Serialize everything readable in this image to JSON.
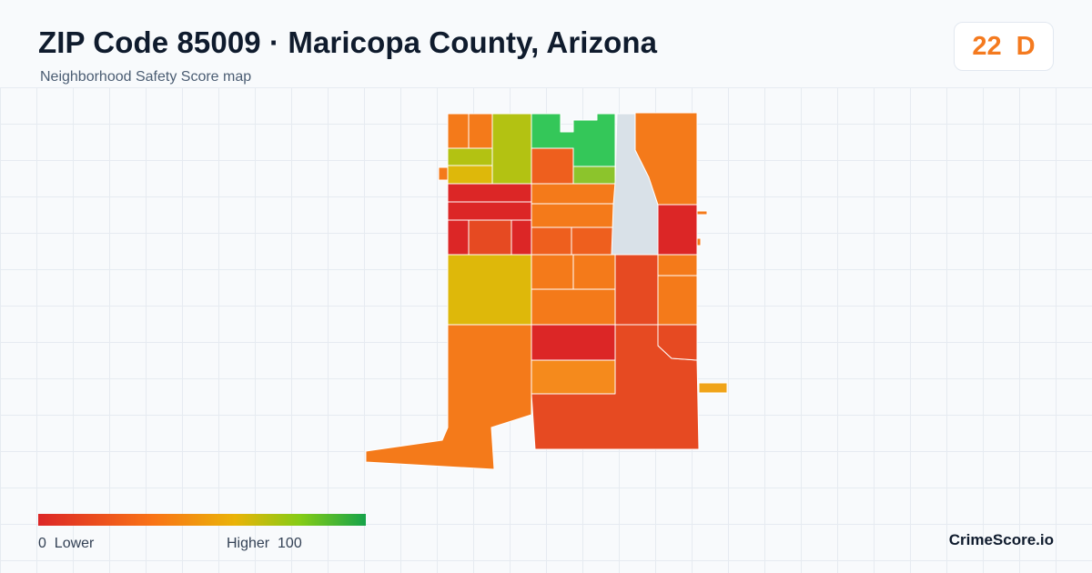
{
  "header": {
    "title": "ZIP Code 85009 · Maricopa County, Arizona",
    "subtitle": "Neighborhood Safety Score map"
  },
  "score_badge": {
    "score": "22",
    "grade": "D",
    "color": "#f47a1f"
  },
  "map": {
    "colors": {
      "red": "#dc2626",
      "red_orange": "#e64a22",
      "orange_dark": "#ee5f1e",
      "orange": "#f47a1a",
      "orange_light": "#f58a1c",
      "amber": "#f0a41a",
      "gold": "#deb80a",
      "yellow_green": "#b3c212",
      "lime": "#8cc42c",
      "green": "#34c759",
      "no_data": "#d9e1e8"
    }
  },
  "legend": {
    "low_value": "0",
    "low_label": "Lower",
    "high_label": "Higher",
    "high_value": "100",
    "colors": [
      "#dc2626",
      "#f97316",
      "#eab308",
      "#84cc16",
      "#16a34a"
    ]
  },
  "brand": "CrimeScore.io"
}
